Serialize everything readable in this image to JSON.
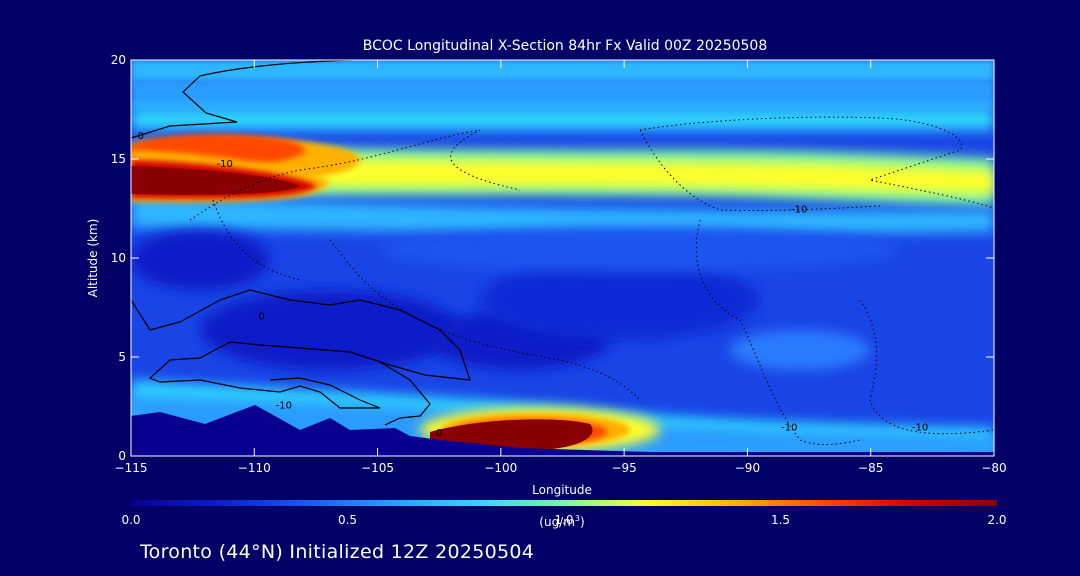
{
  "colors": {
    "background": "#000066",
    "text": "#ffffff",
    "colormap": [
      "#08008f",
      "#0a1fc8",
      "#1f55f0",
      "#2a9cff",
      "#2fd6ff",
      "#7cf7a8",
      "#ffff2a",
      "#ffb000",
      "#ff4a00",
      "#d40000",
      "#8a0000"
    ]
  },
  "chart_data": {
    "type": "heatmap",
    "title": "BCOC Longitudinal X-Section 84hr  Fx Valid 00Z 20250508",
    "xlabel": "Longitude",
    "ylabel": "Altitude (km)",
    "xlim": [
      -115,
      -80
    ],
    "ylim": [
      0,
      20
    ],
    "x_ticks": [
      -115,
      -110,
      -105,
      -100,
      -95,
      -90,
      -85,
      -80
    ],
    "y_ticks": [
      0,
      5,
      10,
      15,
      20
    ],
    "colorbar": {
      "min": 0.0,
      "max": 2.0,
      "ticks": [
        "0.0",
        "0.5",
        "1.0",
        "1.5",
        "2.0"
      ],
      "unit_line1": "(ug/m",
      "unit_sup": "3",
      "unit_line2": ")"
    },
    "features": [
      {
        "name": "upper-layer-max",
        "lon_range": [
          -115,
          -107
        ],
        "alt_km": 13.7,
        "value": 2.0
      },
      {
        "name": "upper-band",
        "lon_range": [
          -115,
          -80
        ],
        "alt_km": 14.0,
        "value": 1.2
      },
      {
        "name": "lower-plume-max",
        "lon_range": [
          -103,
          -94
        ],
        "alt_km": 1.1,
        "value": 2.0
      }
    ],
    "contour_labels": [
      {
        "text": "0",
        "lon": -114.6,
        "alt": 16.2
      },
      {
        "text": "-10",
        "lon": -111.2,
        "alt": 14.8
      },
      {
        "text": "-10",
        "lon": -87.9,
        "alt": 12.5
      },
      {
        "text": "0",
        "lon": -109.7,
        "alt": 7.1
      },
      {
        "text": "-10",
        "lon": -108.8,
        "alt": 2.6
      },
      {
        "text": "0",
        "lon": -102.5,
        "alt": 1.2
      },
      {
        "text": "-10",
        "lon": -88.3,
        "alt": 1.5
      },
      {
        "text": "-10",
        "lon": -83.0,
        "alt": 1.5
      }
    ]
  },
  "footer": {
    "text": "Toronto (44°N) Initialized 12Z 20250504"
  }
}
